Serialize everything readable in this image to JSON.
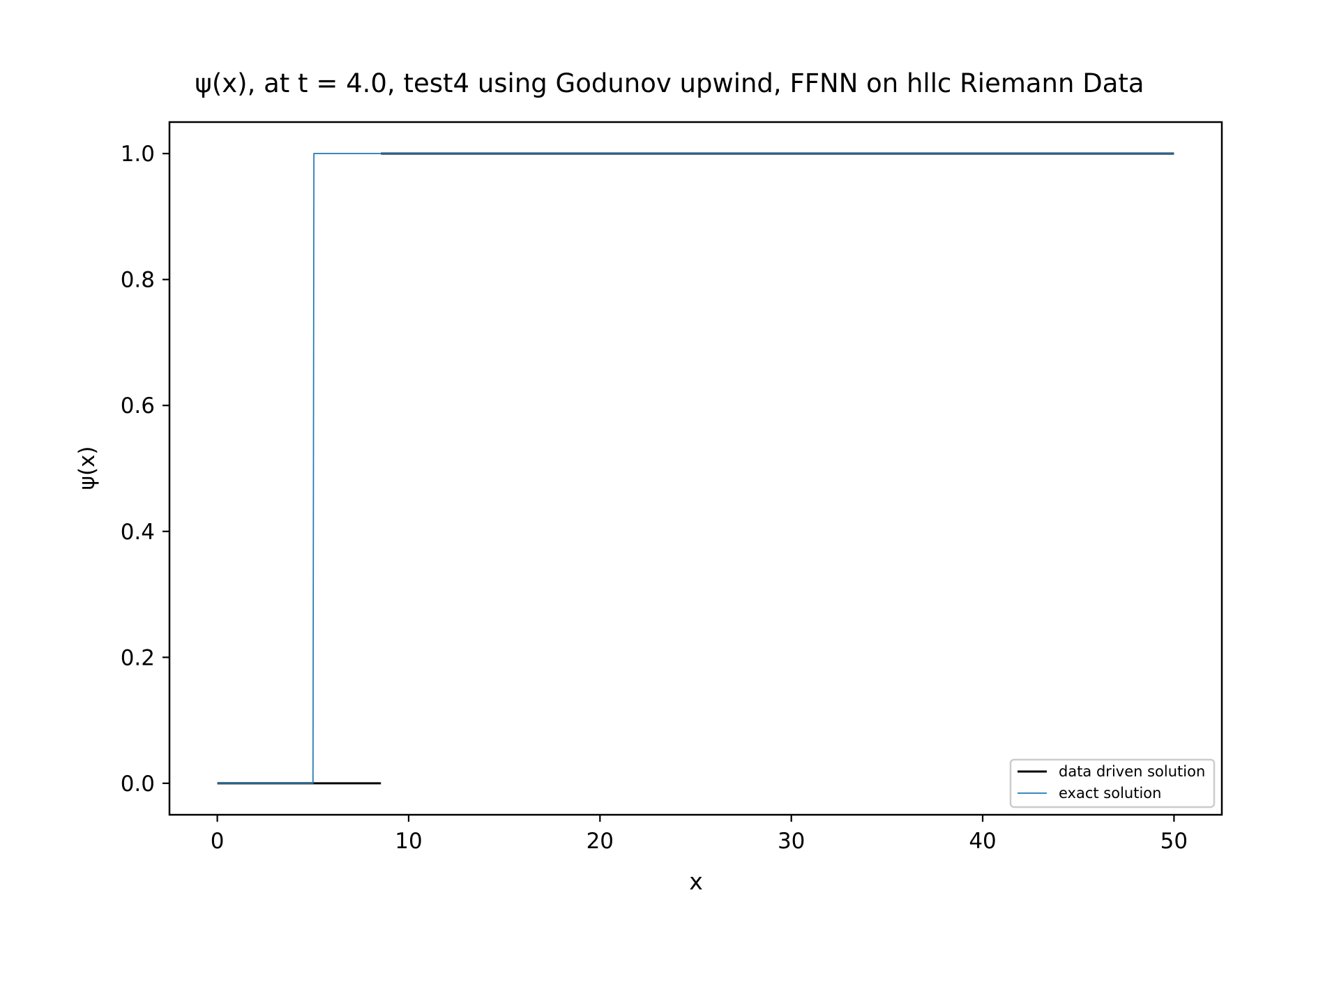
{
  "chart_data": {
    "type": "line",
    "title": "ψ(x), at t = 4.0, test4 using Godunov upwind, FFNN on hllc Riemann Data",
    "xlabel": "x",
    "ylabel": "ψ(x)",
    "xlim": [
      -2.5,
      52.5
    ],
    "ylim": [
      -0.05,
      1.05
    ],
    "x_ticks": [
      0,
      10,
      20,
      30,
      40,
      50
    ],
    "x_tick_labels": [
      "0",
      "10",
      "20",
      "30",
      "40",
      "50"
    ],
    "y_ticks": [
      0.0,
      0.2,
      0.4,
      0.6,
      0.8,
      1.0
    ],
    "y_tick_labels": [
      "0.0",
      "0.2",
      "0.4",
      "0.6",
      "0.8",
      "1.0"
    ],
    "grid": false,
    "legend_position": "lower-right",
    "series": [
      {
        "name": "data driven solution",
        "color": "#000000",
        "segments": [
          {
            "x": [
              0,
              8.55
            ],
            "y": [
              0.0,
              0.0
            ]
          },
          {
            "x": [
              8.55,
              50
            ],
            "y": [
              1.0,
              1.0
            ]
          }
        ]
      },
      {
        "name": "exact solution",
        "color": "#1f77b4",
        "segments": [
          {
            "x": [
              0,
              5.0,
              5.05,
              50
            ],
            "y": [
              0.0,
              0.0,
              1.0,
              1.0
            ]
          }
        ]
      }
    ]
  }
}
